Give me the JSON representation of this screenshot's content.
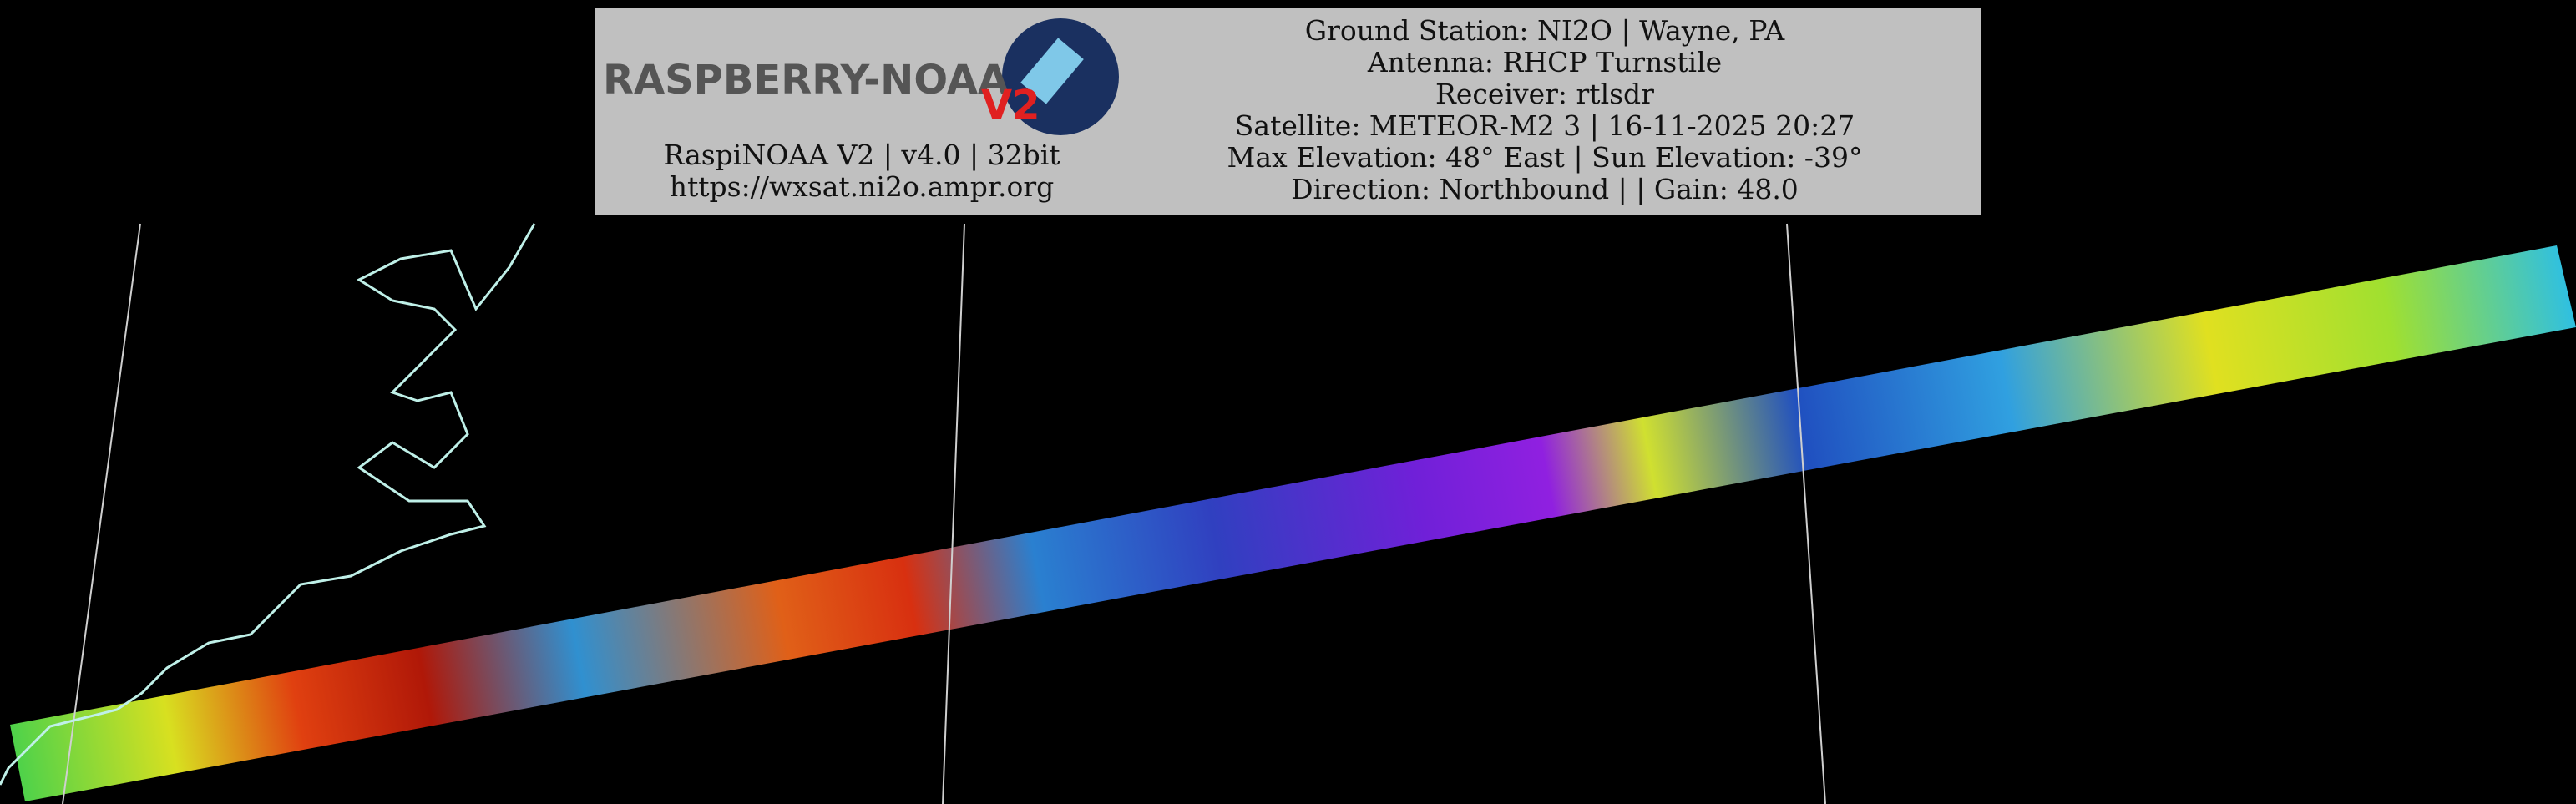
{
  "logo": {
    "title": "RASPBERRY-NOAA",
    "badge": "V2"
  },
  "station_info": {
    "left": [
      "RaspiNOAA V2 | v4.0 | 32bit",
      "https://wxsat.ni2o.ampr.org"
    ],
    "right": [
      "Ground Station: NI2O | Wayne, PA",
      "Antenna: RHCP Turnstile",
      "Receiver: rtlsdr",
      "Satellite: METEOR-M2 3 | 16-11-2025 20:27",
      "Max Elevation: 48° East | Sun Elevation: -39°",
      "Direction: Northbound | | Gain: 48.0"
    ]
  }
}
